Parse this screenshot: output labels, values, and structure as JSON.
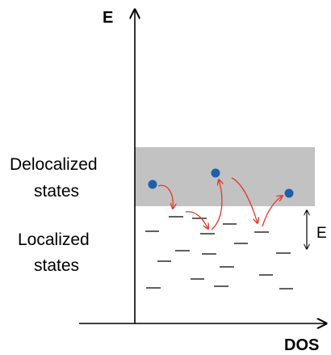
{
  "diagram": {
    "axis_y_label": "E",
    "axis_x_label": "DOS",
    "band_label": [
      "Delocalized",
      "states"
    ],
    "localized_label": [
      "Localized",
      "states"
    ],
    "energy_gap_label": "E",
    "colors": {
      "band": "#c2c2c2",
      "electron": "#1f5fa8",
      "hop_arrow": "#e23a2a",
      "axis": "#000000"
    }
  }
}
